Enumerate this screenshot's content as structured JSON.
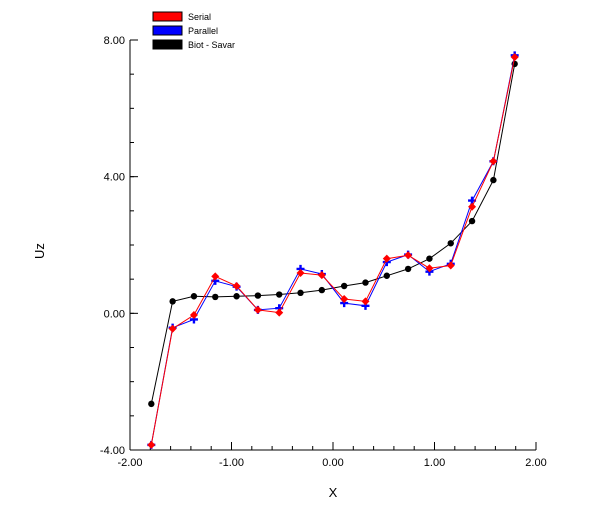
{
  "chart_data": {
    "type": "line",
    "xlabel": "X",
    "ylabel": "Uz",
    "xlim": [
      -2.0,
      2.0
    ],
    "ylim": [
      -4.0,
      8.0
    ],
    "xticks": [
      -2.0,
      -1.0,
      0.0,
      1.0,
      2.0
    ],
    "xtick_labels": [
      "-2.00",
      "-1.00",
      "0.00",
      "1.00",
      "2.00"
    ],
    "yticks": [
      -4.0,
      0.0,
      4.0,
      8.0
    ],
    "ytick_labels": [
      "-4.00",
      "0.00",
      "4.00",
      "8.00"
    ],
    "x_minor_step": 0.2,
    "y_minor_step": 1.0,
    "grid": false,
    "legend_position": "top-left",
    "series": [
      {
        "name": "Serial",
        "color": "#ff0000",
        "marker": "diamond",
        "x": [
          -1.79,
          -1.58,
          -1.37,
          -1.16,
          -0.95,
          -0.74,
          -0.53,
          -0.32,
          -0.11,
          0.11,
          0.32,
          0.53,
          0.74,
          0.95,
          1.16,
          1.37,
          1.58,
          1.79
        ],
        "y": [
          -3.85,
          -0.45,
          -0.05,
          1.08,
          0.8,
          0.1,
          0.02,
          1.18,
          1.12,
          0.42,
          0.35,
          1.6,
          1.7,
          1.32,
          1.4,
          3.12,
          4.45,
          7.5
        ]
      },
      {
        "name": "Parallel",
        "color": "#0000ff",
        "marker": "plus",
        "x": [
          -1.79,
          -1.58,
          -1.37,
          -1.16,
          -0.95,
          -0.74,
          -0.53,
          -0.32,
          -0.11,
          0.11,
          0.32,
          0.53,
          0.74,
          0.95,
          1.16,
          1.37,
          1.58,
          1.79
        ],
        "y": [
          -3.85,
          -0.42,
          -0.18,
          0.95,
          0.78,
          0.1,
          0.15,
          1.3,
          1.15,
          0.3,
          0.22,
          1.5,
          1.72,
          1.22,
          1.45,
          3.3,
          4.45,
          7.55
        ]
      },
      {
        "name": "Biot - Savar",
        "color": "#000000",
        "marker": "circle",
        "x": [
          -1.79,
          -1.58,
          -1.37,
          -1.16,
          -0.95,
          -0.74,
          -0.53,
          -0.32,
          -0.11,
          0.11,
          0.32,
          0.53,
          0.74,
          0.95,
          1.16,
          1.37,
          1.58,
          1.79
        ],
        "y": [
          -2.65,
          0.35,
          0.5,
          0.48,
          0.5,
          0.52,
          0.55,
          0.6,
          0.68,
          0.8,
          0.9,
          1.1,
          1.3,
          1.6,
          2.05,
          2.7,
          3.9,
          7.3
        ]
      }
    ]
  }
}
